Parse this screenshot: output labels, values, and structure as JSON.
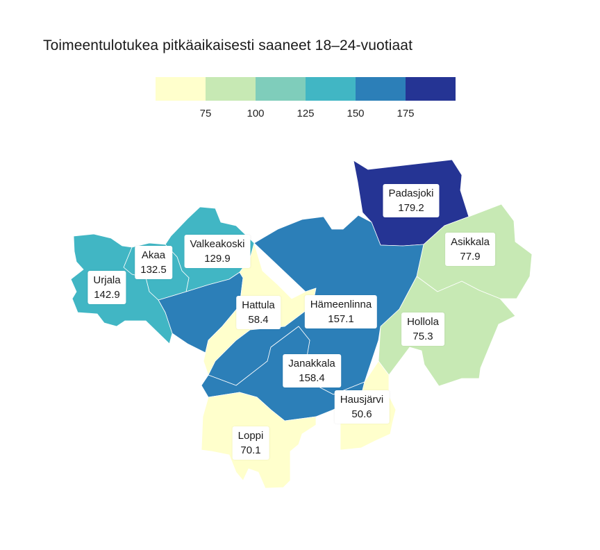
{
  "title": "Toimeentulotukea pitkäaikaisesti saaneet 18–24-vuotiaat",
  "legend": {
    "colors": [
      "#ffffcc",
      "#c7e9b4",
      "#7fcdbb",
      "#41b6c4",
      "#2c7fb8",
      "#253494"
    ],
    "ticks": [
      "75",
      "100",
      "125",
      "150",
      "175"
    ]
  },
  "regions": [
    {
      "name": "Padasjoki",
      "value": "179.2",
      "color": "#253494"
    },
    {
      "name": "Asikkala",
      "value": "77.9",
      "color": "#c7e9b4"
    },
    {
      "name": "Hollola",
      "value": "75.3",
      "color": "#c7e9b4"
    },
    {
      "name": "Hämeenlinna",
      "value": "157.1",
      "color": "#2c7fb8"
    },
    {
      "name": "Janakkala",
      "value": "158.4",
      "color": "#2c7fb8"
    },
    {
      "name": "Hattula",
      "value": "58.4",
      "color": "#ffffcc"
    },
    {
      "name": "Valkeakoski",
      "value": "129.9",
      "color": "#41b6c4"
    },
    {
      "name": "Akaa",
      "value": "132.5",
      "color": "#41b6c4"
    },
    {
      "name": "Urjala",
      "value": "142.9",
      "color": "#41b6c4"
    },
    {
      "name": "Loppi",
      "value": "70.1",
      "color": "#ffffcc"
    },
    {
      "name": "Hausjärvi",
      "value": "50.6",
      "color": "#ffffcc"
    }
  ]
}
